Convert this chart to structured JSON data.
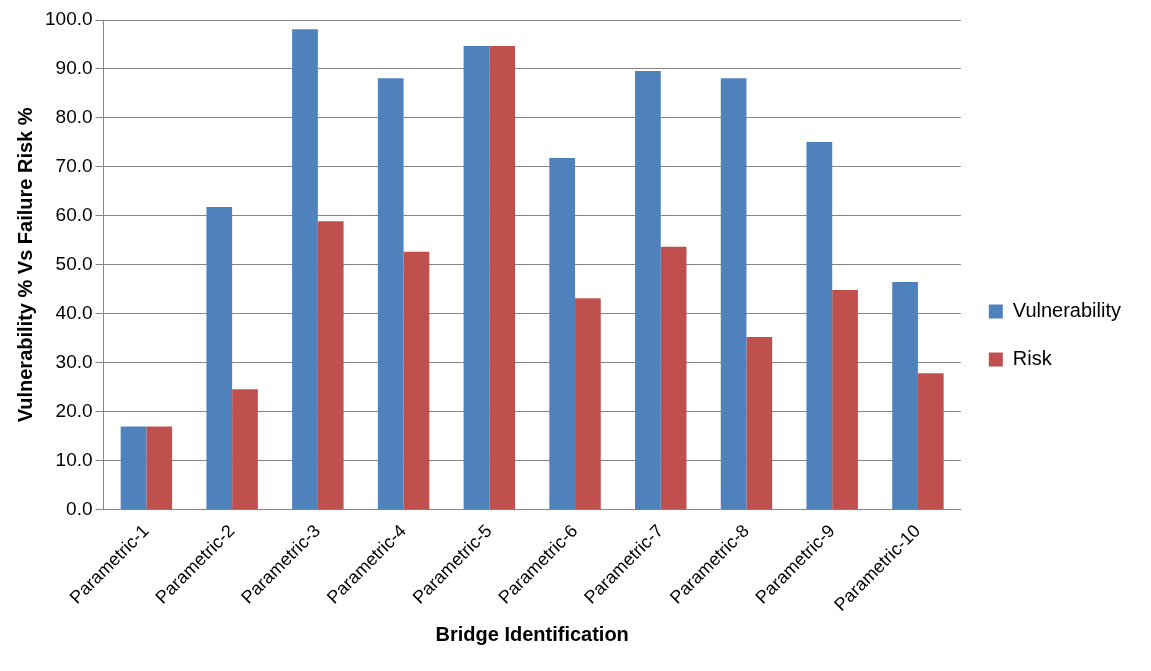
{
  "chart_data": {
    "type": "bar",
    "xlabel": "Bridge Identification",
    "ylabel": "Vulnerability % Vs Failure Risk %",
    "categories": [
      "Parametric-1",
      "Parametric-2",
      "Parametric-3",
      "Parametric-4",
      "Parametric-5",
      "Parametric-6",
      "Parametric-7",
      "Parametric-8",
      "Parametric-9",
      "Parametric-10"
    ],
    "series": [
      {
        "name": "Vulnerability",
        "color": "#4f81bd",
        "values": [
          17.0,
          61.8,
          98.1,
          88.1,
          94.7,
          71.8,
          89.6,
          88.1,
          75.1,
          46.5
        ]
      },
      {
        "name": "Risk",
        "color": "#c0504d",
        "values": [
          17.0,
          24.6,
          58.9,
          52.7,
          94.7,
          43.2,
          53.7,
          35.3,
          44.9,
          27.9
        ]
      }
    ],
    "ylim": [
      0,
      100
    ],
    "yticks": [
      {
        "value": 0,
        "label": "0.0"
      },
      {
        "value": 10,
        "label": "10.0"
      },
      {
        "value": 20,
        "label": "20.0"
      },
      {
        "value": 30,
        "label": "30.0"
      },
      {
        "value": 40,
        "label": "40.0"
      },
      {
        "value": 50,
        "label": "50.0"
      },
      {
        "value": 60,
        "label": "60.0"
      },
      {
        "value": 70,
        "label": "70.0"
      },
      {
        "value": 80,
        "label": "80.0"
      },
      {
        "value": 90,
        "label": "90.0"
      },
      {
        "value": 100,
        "label": "100.0"
      }
    ],
    "grid": "y",
    "legend": "right"
  }
}
